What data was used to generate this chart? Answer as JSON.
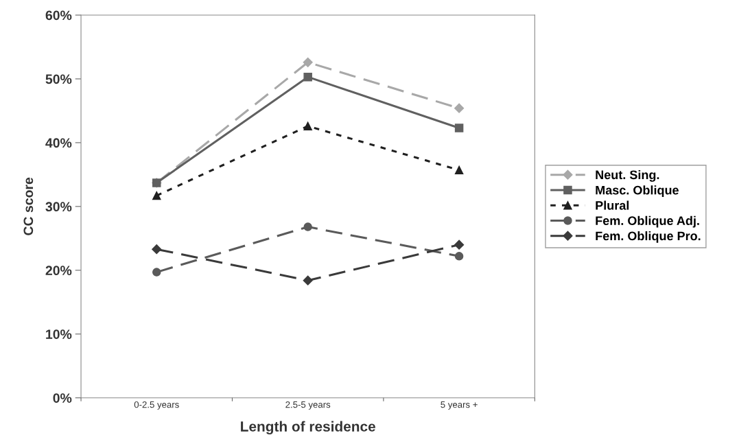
{
  "chart_data": {
    "type": "line",
    "xlabel": "Length of residence",
    "ylabel": "CC score",
    "categories": [
      "0-2.5 years",
      "2.5-5 years",
      "5 years +"
    ],
    "series": [
      {
        "name": "Neut. Sing.",
        "color": "#a8a8a8",
        "marker": "diamond",
        "line_style": "dashed",
        "values": [
          0.337,
          0.526,
          0.454
        ]
      },
      {
        "name": "Masc. Oblique",
        "color": "#606060",
        "marker": "square",
        "line_style": "solid",
        "values": [
          0.337,
          0.503,
          0.423
        ]
      },
      {
        "name": "Plural",
        "color": "#202020",
        "marker": "triangle",
        "line_style": "dotted",
        "values": [
          0.317,
          0.426,
          0.357
        ]
      },
      {
        "name": "Fem. Oblique Adj.",
        "color": "#5a5a5a",
        "marker": "circle",
        "line_style": "dashed",
        "values": [
          0.197,
          0.268,
          0.222
        ]
      },
      {
        "name": "Fem. Oblique Pro.",
        "color": "#3a3a3a",
        "marker": "diamond",
        "line_style": "dashed",
        "values": [
          0.233,
          0.184,
          0.24
        ]
      }
    ],
    "ylim": [
      0,
      0.6
    ],
    "yticks": [
      {
        "value": 0,
        "label": "0%"
      },
      {
        "value": 0.1,
        "label": "10%"
      },
      {
        "value": 0.2,
        "label": "20%"
      },
      {
        "value": 0.3,
        "label": "30%"
      },
      {
        "value": 0.4,
        "label": "40%"
      },
      {
        "value": 0.5,
        "label": "50%"
      },
      {
        "value": 0.6,
        "label": "60%"
      }
    ],
    "legend": "right",
    "grid": false
  }
}
